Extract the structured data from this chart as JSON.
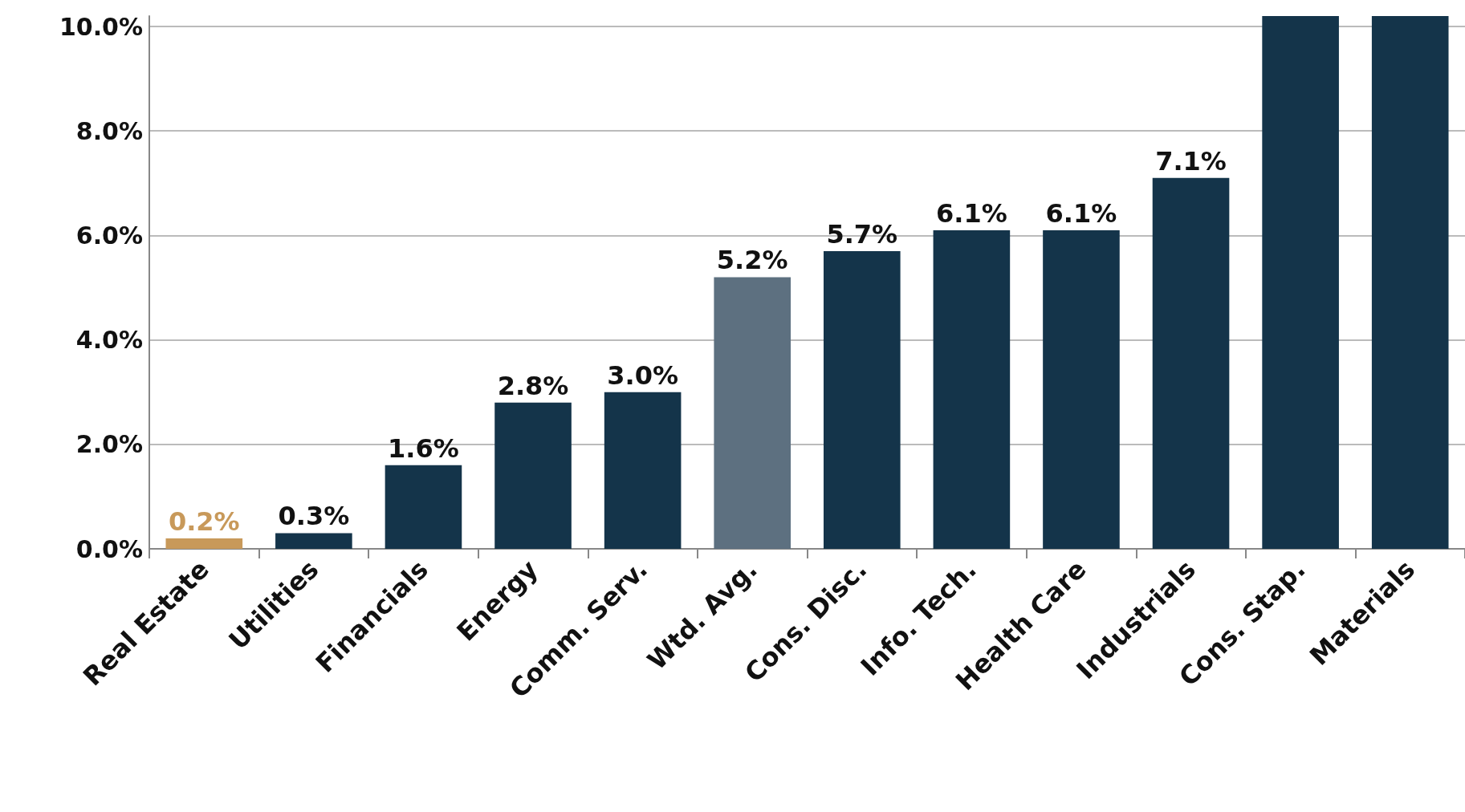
{
  "chart_data": {
    "type": "bar",
    "categories": [
      "Real Estate",
      "Utilities",
      "Financials",
      "Energy",
      "Comm. Serv.",
      "Wtd. Avg.",
      "Cons. Disc.",
      "Info. Tech.",
      "Health Care",
      "Industrials",
      "Cons. Stap.",
      "Materials"
    ],
    "values": [
      0.2,
      0.3,
      1.6,
      2.8,
      3.0,
      5.2,
      5.7,
      6.1,
      6.1,
      7.1,
      10.2,
      10.2
    ],
    "colors": [
      "#c8995a",
      "#14344a",
      "#14344a",
      "#14344a",
      "#14344a",
      "#5d7080",
      "#14344a",
      "#14344a",
      "#14344a",
      "#14344a",
      "#14344a",
      "#14344a"
    ],
    "value_labels": [
      "0.2%",
      "0.3%",
      "1.6%",
      "2.8%",
      "3.0%",
      "5.2%",
      "5.7%",
      "6.1%",
      "6.1%",
      "7.1%",
      null,
      null
    ],
    "ylim": [
      0,
      10.2
    ],
    "yticks": [
      {
        "value": 0,
        "label": "0.0%"
      },
      {
        "value": 2,
        "label": "2.0%"
      },
      {
        "value": 4,
        "label": "4.0%"
      },
      {
        "value": 6,
        "label": "6.0%"
      },
      {
        "value": 8,
        "label": "8.0%"
      },
      {
        "value": 10,
        "label": "10.0%"
      }
    ],
    "grid": true
  }
}
